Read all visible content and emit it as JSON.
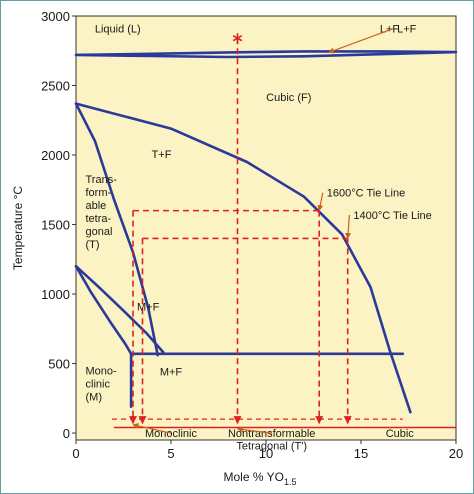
{
  "colors": {
    "background": "#fbf3c3",
    "phase_boundary": "#2b3a9a",
    "tie_line": "#e02020",
    "text": "#1a1a1a",
    "frame": "#5fa0a4"
  },
  "chart_data": {
    "type": "phase-diagram",
    "title": "",
    "xlabel": "Mole % YO",
    "xlabel_subscript": "1.5",
    "ylabel": "Temperature °C",
    "xlim": [
      0,
      20
    ],
    "ylim": [
      -50,
      3000
    ],
    "x_ticks": [
      0,
      5,
      10,
      15,
      20
    ],
    "y_ticks": [
      0,
      500,
      1000,
      1500,
      2000,
      2500,
      3000
    ],
    "grid": false,
    "boundaries": {
      "liquidus_upper": [
        [
          0,
          2720
        ],
        [
          4,
          2728
        ],
        [
          8,
          2738
        ],
        [
          12,
          2745
        ],
        [
          16,
          2745
        ],
        [
          20,
          2740
        ]
      ],
      "liquidus_lower": [
        [
          0,
          2720
        ],
        [
          4,
          2712
        ],
        [
          8,
          2705
        ],
        [
          12,
          2710
        ],
        [
          16,
          2725
        ],
        [
          20,
          2740
        ]
      ],
      "cubic_tf_boundary": [
        [
          0,
          2370
        ],
        [
          5,
          2190
        ],
        [
          9,
          1950
        ],
        [
          12,
          1700
        ],
        [
          14,
          1430
        ],
        [
          15.5,
          1050
        ],
        [
          16.5,
          600
        ],
        [
          17.6,
          150
        ]
      ],
      "tetragonal_tf_boundary": [
        [
          0,
          2370
        ],
        [
          1,
          2100
        ],
        [
          2,
          1680
        ],
        [
          3,
          1300
        ],
        [
          3.8,
          900
        ],
        [
          4.3,
          560
        ]
      ],
      "monoclinic_upper": [
        [
          0,
          1200
        ],
        [
          1.2,
          1050
        ],
        [
          2.5,
          880
        ],
        [
          3.7,
          720
        ],
        [
          4.6,
          580
        ]
      ],
      "monoclinic_lower": [
        [
          0,
          1200
        ],
        [
          0.8,
          1010
        ],
        [
          1.8,
          800
        ],
        [
          2.6,
          640
        ],
        [
          2.9,
          570
        ]
      ],
      "eutectoid_line": [
        [
          2.9,
          570
        ],
        [
          17.2,
          570
        ]
      ],
      "monoclinic_edge": [
        [
          2.9,
          570
        ],
        [
          2.9,
          190
        ]
      ],
      "cubic_edge": [
        [
          17.2,
          570
        ],
        [
          17.6,
          150
        ]
      ]
    },
    "tie_lines": [
      {
        "label": "1600°C Tie Line",
        "temperature": 1600,
        "x_from": 3.0,
        "x_to": 12.8
      },
      {
        "label": "1400°C Tie Line",
        "temperature": 1400,
        "x_from": 3.5,
        "x_to": 14.3
      }
    ],
    "quench_verticals": [
      3.0,
      3.5,
      8.5,
      12.8,
      14.3
    ],
    "quench_start": {
      "x": 8.5,
      "temperature": 2840
    },
    "room_temp_segments": {
      "tetragonal_band": [
        2.0,
        17.2
      ],
      "cubic_band": [
        17.2,
        20
      ]
    },
    "regions": [
      {
        "name": "Liquid (L)",
        "x": 2.2,
        "y": 2880
      },
      {
        "name": "L+F",
        "x": 16.5,
        "y": 2880
      },
      {
        "name": "Cubic (F)",
        "x": 11.2,
        "y": 2390
      },
      {
        "name": "T+F",
        "x": 4.5,
        "y": 1980
      },
      {
        "name": "M+F",
        "x": 5.0,
        "y": 415
      },
      {
        "name": "M+F",
        "x": 3.8,
        "y": 880
      }
    ],
    "region_lines": {
      "tetragonal": [
        "Trans-",
        "form-",
        "able",
        "tetra-",
        "gonal",
        "(T)"
      ],
      "monoclinic": [
        "Mono-",
        "clinic",
        "(M)"
      ],
      "m_plus": "M",
      "plus": "+",
      "f": "F"
    },
    "annotations": [
      {
        "name": "L+F",
        "arrow_to": [
          13.3,
          2738
        ]
      },
      {
        "name": "1600°C Tie Line",
        "arrow_to": [
          12.8,
          1600
        ]
      },
      {
        "name": "1400°C Tie Line",
        "arrow_to": [
          14.3,
          1400
        ]
      },
      {
        "name": "Monoclinic",
        "arrow_to": [
          3.0,
          60
        ]
      },
      {
        "name": "Nontransformable",
        "arrow_to": [
          8.5,
          30
        ]
      },
      {
        "name": "Tetragonal (T')",
        "arrow_to": [
          8.5,
          30
        ]
      },
      {
        "name": "Cubic",
        "arrow_to": [
          14.3,
          30
        ]
      }
    ]
  }
}
